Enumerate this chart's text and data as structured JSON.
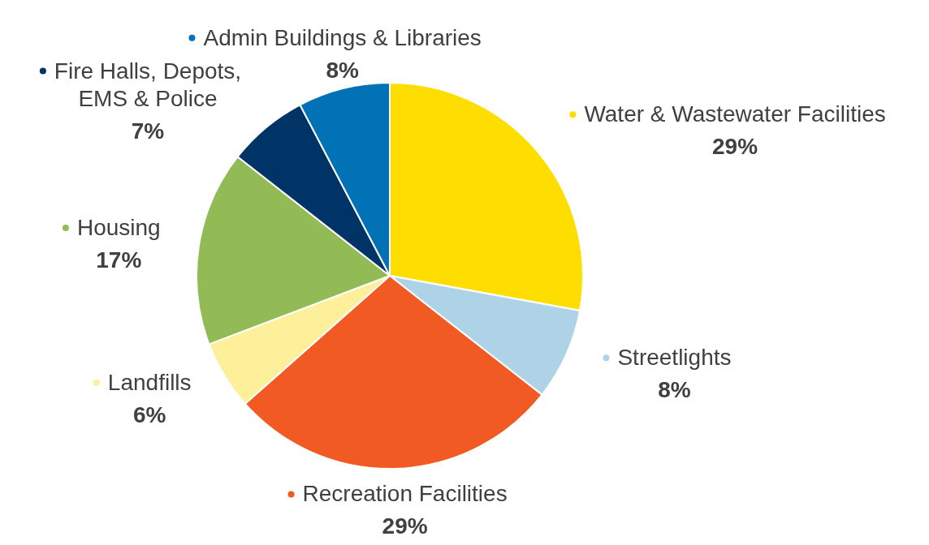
{
  "chart_data": {
    "type": "pie",
    "categories": [
      "Water & Wastewater Facilities",
      "Streetlights",
      "Recreation Facilities",
      "Landfills",
      "Housing",
      "Fire Halls, Depots, EMS & Police",
      "Admin Buildings & Libraries"
    ],
    "values": [
      29,
      8,
      29,
      6,
      17,
      7,
      8
    ],
    "value_labels": [
      "29%",
      "8%",
      "29%",
      "6%",
      "17%",
      "7%",
      "8%"
    ],
    "colors": [
      "#fedd00",
      "#aed3e7",
      "#f15a22",
      "#fef09a",
      "#93bb55",
      "#003366",
      "#0072b5"
    ],
    "legend": true
  }
}
